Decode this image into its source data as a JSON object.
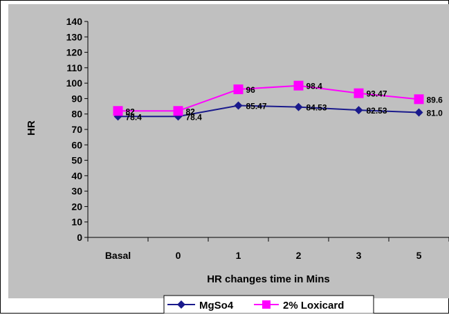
{
  "chart_data": {
    "type": "line",
    "categories": [
      "Basal",
      "0",
      "1",
      "2",
      "3",
      "5"
    ],
    "series": [
      {
        "name": "MgSo4",
        "values": [
          78.4,
          78.4,
          85.47,
          84.53,
          82.53,
          81.0
        ],
        "labels": [
          "78.4",
          "78.4",
          "85.47",
          "84.53",
          "82.53",
          "81.0"
        ],
        "color": "#1A1A8C",
        "marker": "diamond"
      },
      {
        "name": "2% Loxicard",
        "values": [
          82,
          82,
          96,
          98.4,
          93.47,
          89.6
        ],
        "labels": [
          "82",
          "82",
          "96",
          "98.4",
          "93.47",
          "89.6"
        ],
        "color": "#FF00FF",
        "marker": "square"
      }
    ],
    "xlabel": "HR changes time in Mins",
    "ylabel": "HR",
    "ylim": [
      0,
      140
    ],
    "yticks": [
      0,
      10,
      20,
      30,
      40,
      50,
      60,
      70,
      80,
      90,
      100,
      110,
      120,
      130,
      140
    ],
    "grid": false,
    "legend": "bottom",
    "plot_background": "#C0C0C0"
  }
}
